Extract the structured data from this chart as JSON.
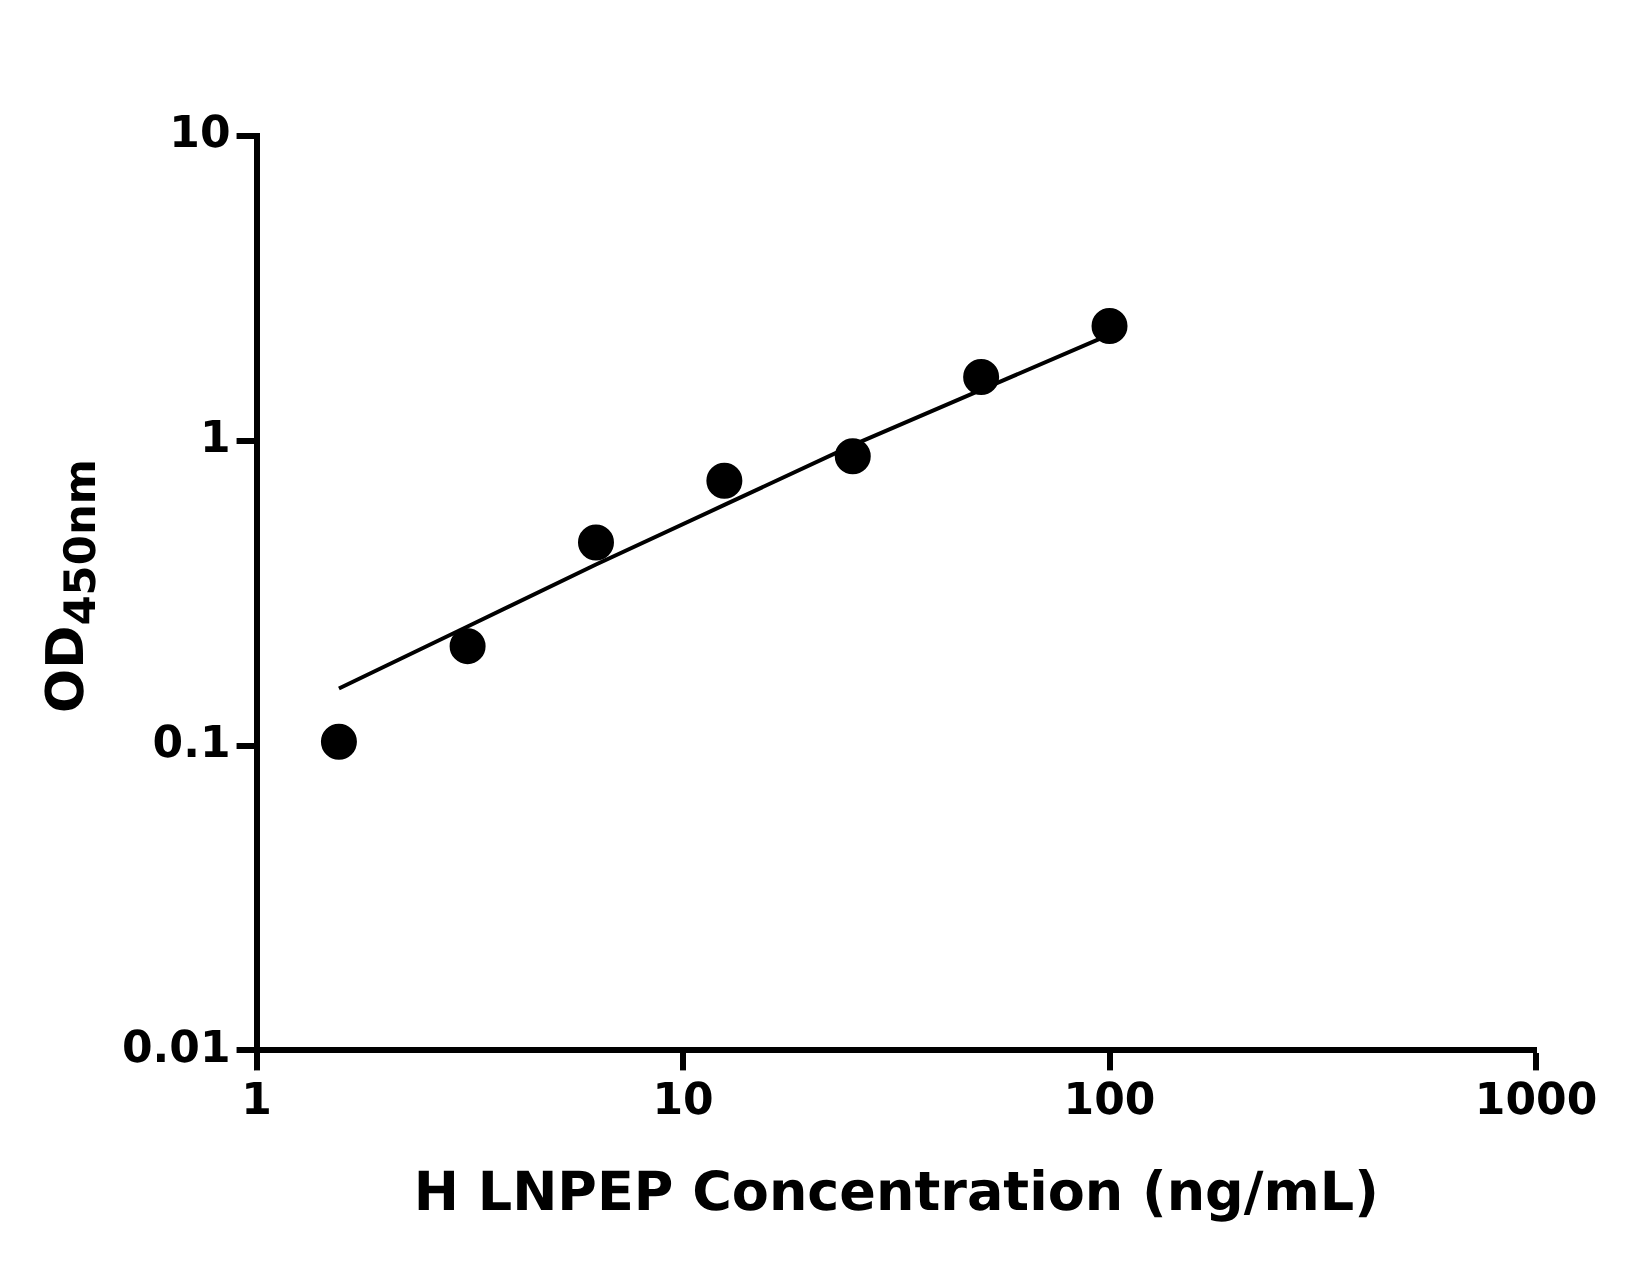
{
  "chart_data": {
    "type": "scatter",
    "xlabel": "H LNPEP Concentration (ng/mL)",
    "ylabel": "OD$_{450nm}$",
    "log": "xy",
    "grid": false,
    "legend": false,
    "xlim": [
      1,
      1000
    ],
    "xticks": [
      1,
      10,
      100,
      1000
    ],
    "ylim": [
      0.01,
      10
    ],
    "yticks": [
      0.01,
      0.1,
      1,
      10
    ],
    "series": [
      {
        "marker": "circle",
        "color": "#000000",
        "x": [
          1.56,
          3.125,
          6.25,
          12.5,
          25,
          50,
          100
        ],
        "values": [
          0.103,
          0.212,
          0.464,
          0.74,
          0.89,
          1.62,
          2.38
        ]
      },
      {
        "type": "line",
        "marker": "none",
        "line_style": "solid",
        "color": "#000000",
        "x": [
          1.56,
          3.125,
          6.25,
          12.5,
          25,
          50,
          100
        ],
        "values": [
          0.154,
          0.246,
          0.393,
          0.616,
          0.968,
          1.47,
          2.23
        ]
      }
    ]
  }
}
